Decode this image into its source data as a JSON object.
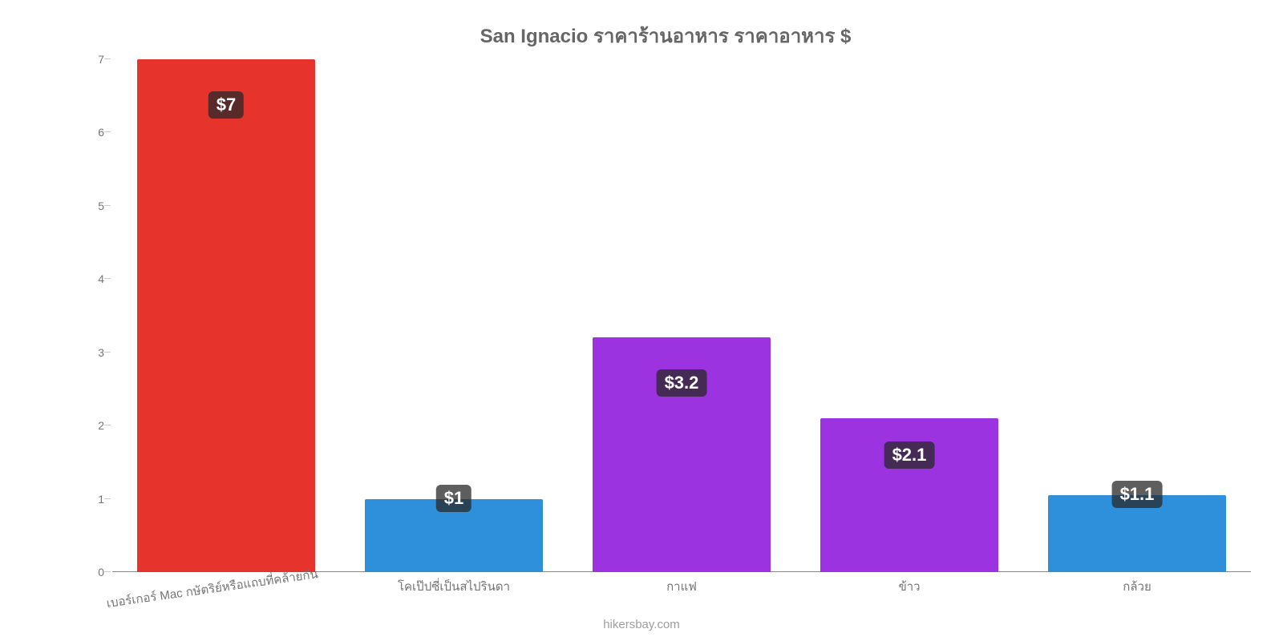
{
  "chart": {
    "type": "bar",
    "title": "San Ignacio ราคาร้านอาหาร ราคาอาหาร $",
    "title_color": "#666666",
    "title_fontsize": 24,
    "background_color": "#ffffff",
    "ylim": [
      0,
      7
    ],
    "ytick_step": 1,
    "yticks": [
      {
        "value": 0,
        "label": "0"
      },
      {
        "value": 1,
        "label": "1"
      },
      {
        "value": 2,
        "label": "2"
      },
      {
        "value": 3,
        "label": "3"
      },
      {
        "value": 4,
        "label": "4"
      },
      {
        "value": 5,
        "label": "5"
      },
      {
        "value": 6,
        "label": "6"
      },
      {
        "value": 7,
        "label": "7"
      }
    ],
    "axis_label_color": "#757575",
    "axis_label_fontsize": 14,
    "baseline_color": "#888888",
    "tick_color": "#cccccc",
    "bar_width_pct": 78,
    "value_badge_bg": "rgba(40,40,40,0.75)",
    "value_badge_color": "#ffffff",
    "value_badge_fontsize": 22,
    "x_label_fontsize": 15,
    "x_label_rotation_deg": -8,
    "data": [
      {
        "category": "เบอร์เกอร์ Mac กษัตริย์หรือแถบที่คล้ายกัน",
        "value": 7.0,
        "value_label": "$7",
        "color": "#e6332c"
      },
      {
        "category": "โคเป๊ปซี่เป็นสไปรินดา",
        "value": 1.0,
        "value_label": "$1",
        "color": "#2e8fdb"
      },
      {
        "category": "กาแฟ",
        "value": 3.2,
        "value_label": "$3.2",
        "color": "#9b33e0"
      },
      {
        "category": "ข้าว",
        "value": 2.1,
        "value_label": "$2.1",
        "color": "#9b33e0"
      },
      {
        "category": "กล้วย",
        "value": 1.05,
        "value_label": "$1.1",
        "color": "#2e8fdb"
      }
    ],
    "source_label": "hikersbay.com",
    "source_color": "#9e9e9e",
    "source_fontsize": 15
  }
}
